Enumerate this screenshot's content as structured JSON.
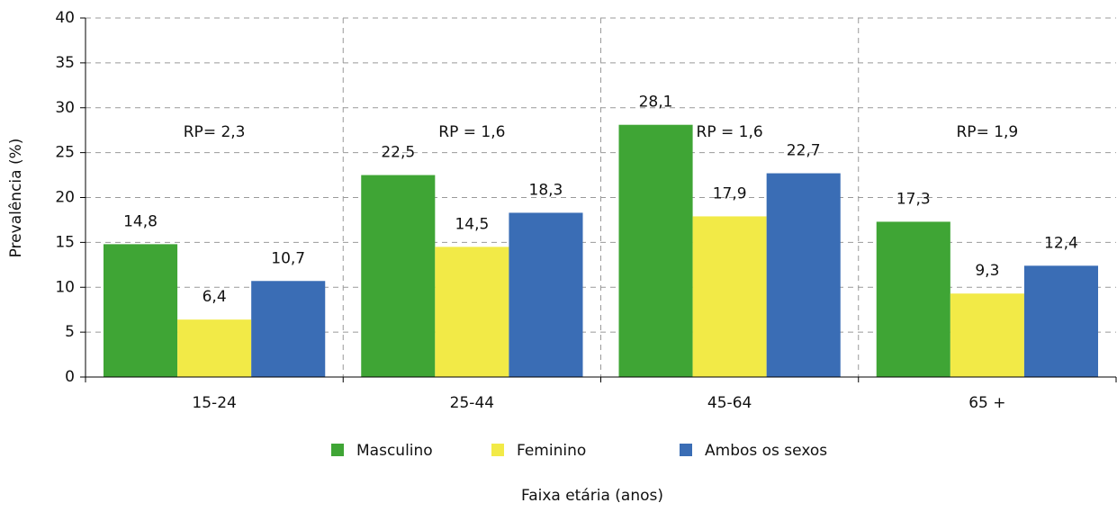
{
  "chart_data": {
    "type": "bar",
    "y_label": "Prevalência (%)",
    "x_label": "Faixa etária (anos)",
    "categories": [
      "15-24",
      "25-44",
      "45-64",
      "65 +"
    ],
    "annotations": [
      "RP= 2,3",
      "RP = 1,6",
      "RP = 1,6",
      "RP= 1,9"
    ],
    "series": [
      {
        "name": "Masculino",
        "color": "#3fa535",
        "values": [
          14.8,
          22.5,
          28.1,
          17.3
        ],
        "value_labels": [
          "14,8",
          "22,5",
          "28,1",
          "17,3"
        ]
      },
      {
        "name": "Feminino",
        "color": "#f2ea47",
        "values": [
          6.4,
          14.5,
          17.9,
          9.3
        ],
        "value_labels": [
          "6,4",
          "14,5",
          "17,9",
          "9,3"
        ]
      },
      {
        "name": "Ambos os sexos",
        "color": "#3a6db5",
        "values": [
          10.7,
          18.3,
          22.7,
          12.4
        ],
        "value_labels": [
          "10,7",
          "18,3",
          "22,7",
          "12,4"
        ]
      }
    ],
    "ylim": [
      0,
      40
    ],
    "yticks": [
      0,
      5,
      10,
      15,
      20,
      25,
      30,
      35,
      40
    ],
    "grid": true,
    "legend": "bottom"
  }
}
